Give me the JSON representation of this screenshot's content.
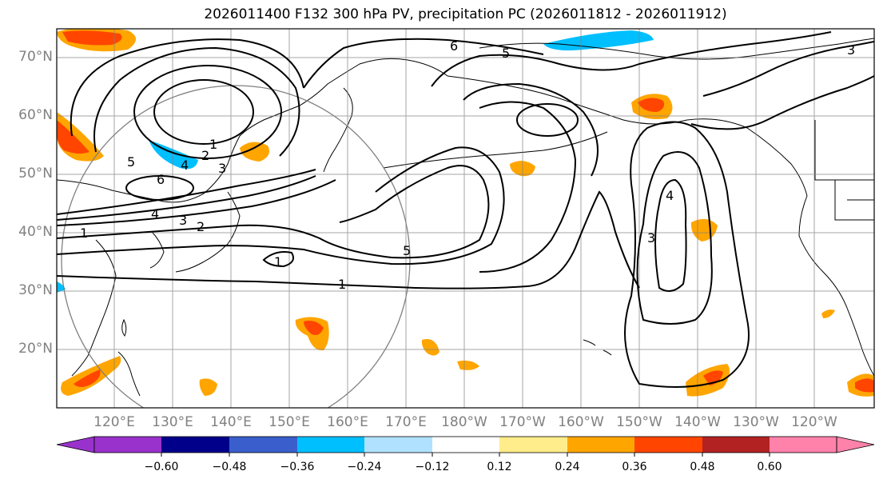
{
  "title": "2026011400 F132 300 hPa PV, precipitation PC (2026011812 - 2026011912)",
  "lat_labels": [
    "70°N",
    "60°N",
    "50°N",
    "40°N",
    "30°N",
    "20°N"
  ],
  "lon_labels": [
    "120°E",
    "130°E",
    "140°E",
    "150°E",
    "160°E",
    "170°E",
    "180°W",
    "170°W",
    "160°W",
    "150°W",
    "140°W",
    "130°W",
    "120°W"
  ],
  "contour_labels": [
    "6",
    "5",
    "5",
    "6",
    "4",
    "3",
    "2",
    "1",
    "1",
    "2",
    "3",
    "4",
    "5",
    "1",
    "1",
    "4",
    "3",
    "3"
  ],
  "colorbar": {
    "colors": [
      "#9932cc",
      "#00008b",
      "#3a5fcd",
      "#00bfff",
      "#b0e2ff",
      "#ffffff",
      "#ffec8b",
      "#ffa500",
      "#ff4500",
      "#b22222",
      "#ff82ab"
    ],
    "tick_labels": [
      "−0.60",
      "−0.48",
      "−0.36",
      "−0.24",
      "−0.12",
      "0.12",
      "0.24",
      "0.36",
      "0.48",
      "0.60"
    ]
  }
}
